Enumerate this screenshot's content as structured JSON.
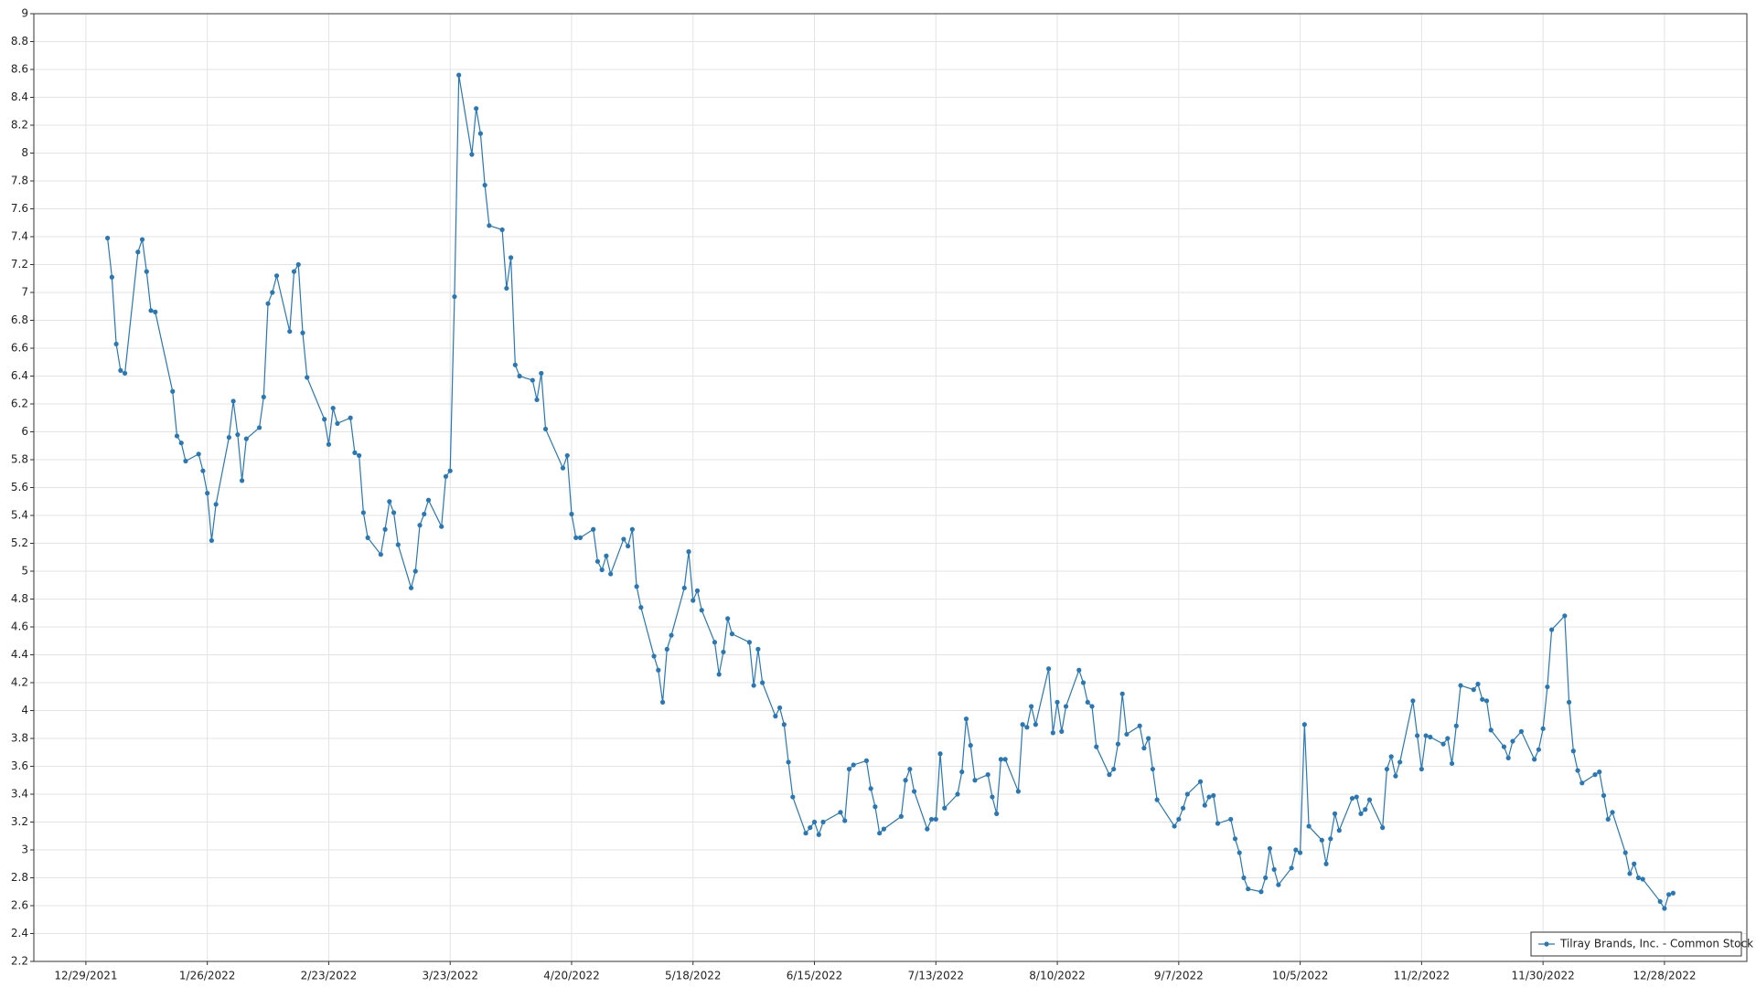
{
  "chart_data": {
    "type": "line",
    "x": [
      "1/3/2022",
      "1/4/2022",
      "1/5/2022",
      "1/6/2022",
      "1/7/2022",
      "1/10/2022",
      "1/11/2022",
      "1/12/2022",
      "1/13/2022",
      "1/14/2022",
      "1/18/2022",
      "1/19/2022",
      "1/20/2022",
      "1/21/2022",
      "1/24/2022",
      "1/25/2022",
      "1/26/2022",
      "1/27/2022",
      "1/28/2022",
      "1/31/2022",
      "2/1/2022",
      "2/2/2022",
      "2/3/2022",
      "2/4/2022",
      "2/7/2022",
      "2/8/2022",
      "2/9/2022",
      "2/10/2022",
      "2/11/2022",
      "2/14/2022",
      "2/15/2022",
      "2/16/2022",
      "2/17/2022",
      "2/18/2022",
      "2/22/2022",
      "2/23/2022",
      "2/24/2022",
      "2/25/2022",
      "2/28/2022",
      "3/1/2022",
      "3/2/2022",
      "3/3/2022",
      "3/4/2022",
      "3/7/2022",
      "3/8/2022",
      "3/9/2022",
      "3/10/2022",
      "3/11/2022",
      "3/14/2022",
      "3/15/2022",
      "3/16/2022",
      "3/17/2022",
      "3/18/2022",
      "3/21/2022",
      "3/22/2022",
      "3/23/2022",
      "3/24/2022",
      "3/25/2022",
      "3/28/2022",
      "3/29/2022",
      "3/30/2022",
      "3/31/2022",
      "4/1/2022",
      "4/4/2022",
      "4/5/2022",
      "4/6/2022",
      "4/7/2022",
      "4/8/2022",
      "4/11/2022",
      "4/12/2022",
      "4/13/2022",
      "4/14/2022",
      "4/18/2022",
      "4/19/2022",
      "4/20/2022",
      "4/21/2022",
      "4/22/2022",
      "4/25/2022",
      "4/26/2022",
      "4/27/2022",
      "4/28/2022",
      "4/29/2022",
      "5/2/2022",
      "5/3/2022",
      "5/4/2022",
      "5/5/2022",
      "5/6/2022",
      "5/9/2022",
      "5/10/2022",
      "5/11/2022",
      "5/12/2022",
      "5/13/2022",
      "5/16/2022",
      "5/17/2022",
      "5/18/2022",
      "5/19/2022",
      "5/20/2022",
      "5/23/2022",
      "5/24/2022",
      "5/25/2022",
      "5/26/2022",
      "5/27/2022",
      "5/31/2022",
      "6/1/2022",
      "6/2/2022",
      "6/3/2022",
      "6/6/2022",
      "6/7/2022",
      "6/8/2022",
      "6/9/2022",
      "6/10/2022",
      "6/13/2022",
      "6/14/2022",
      "6/15/2022",
      "6/16/2022",
      "6/17/2022",
      "6/21/2022",
      "6/22/2022",
      "6/23/2022",
      "6/24/2022",
      "6/27/2022",
      "6/28/2022",
      "6/29/2022",
      "6/30/2022",
      "7/1/2022",
      "7/5/2022",
      "7/6/2022",
      "7/7/2022",
      "7/8/2022",
      "7/11/2022",
      "7/12/2022",
      "7/13/2022",
      "7/14/2022",
      "7/15/2022",
      "7/18/2022",
      "7/19/2022",
      "7/20/2022",
      "7/21/2022",
      "7/22/2022",
      "7/25/2022",
      "7/26/2022",
      "7/27/2022",
      "7/28/2022",
      "7/29/2022",
      "8/1/2022",
      "8/2/2022",
      "8/3/2022",
      "8/4/2022",
      "8/5/2022",
      "8/8/2022",
      "8/9/2022",
      "8/10/2022",
      "8/11/2022",
      "8/12/2022",
      "8/15/2022",
      "8/16/2022",
      "8/17/2022",
      "8/18/2022",
      "8/19/2022",
      "8/22/2022",
      "8/23/2022",
      "8/24/2022",
      "8/25/2022",
      "8/26/2022",
      "8/29/2022",
      "8/30/2022",
      "8/31/2022",
      "9/1/2022",
      "9/2/2022",
      "9/6/2022",
      "9/7/2022",
      "9/8/2022",
      "9/9/2022",
      "9/12/2022",
      "9/13/2022",
      "9/14/2022",
      "9/15/2022",
      "9/16/2022",
      "9/19/2022",
      "9/20/2022",
      "9/21/2022",
      "9/22/2022",
      "9/23/2022",
      "9/26/2022",
      "9/27/2022",
      "9/28/2022",
      "9/29/2022",
      "9/30/2022",
      "10/3/2022",
      "10/4/2022",
      "10/5/2022",
      "10/6/2022",
      "10/7/2022",
      "10/10/2022",
      "10/11/2022",
      "10/12/2022",
      "10/13/2022",
      "10/14/2022",
      "10/17/2022",
      "10/18/2022",
      "10/19/2022",
      "10/20/2022",
      "10/21/2022",
      "10/24/2022",
      "10/25/2022",
      "10/26/2022",
      "10/27/2022",
      "10/28/2022",
      "10/31/2022",
      "11/1/2022",
      "11/2/2022",
      "11/3/2022",
      "11/4/2022",
      "11/7/2022",
      "11/8/2022",
      "11/9/2022",
      "11/10/2022",
      "11/11/2022",
      "11/14/2022",
      "11/15/2022",
      "11/16/2022",
      "11/17/2022",
      "11/18/2022",
      "11/21/2022",
      "11/22/2022",
      "11/23/2022",
      "11/25/2022",
      "11/28/2022",
      "11/29/2022",
      "11/30/2022",
      "12/1/2022",
      "12/2/2022",
      "12/5/2022",
      "12/6/2022",
      "12/7/2022",
      "12/8/2022",
      "12/9/2022",
      "12/12/2022",
      "12/13/2022",
      "12/14/2022",
      "12/15/2022",
      "12/16/2022",
      "12/19/2022",
      "12/20/2022",
      "12/21/2022",
      "12/22/2022",
      "12/23/2022",
      "12/27/2022",
      "12/28/2022",
      "12/29/2022",
      "12/30/2022"
    ],
    "series": [
      {
        "name": "Tilray Brands, Inc. - Common Stock",
        "color": "#2878b5",
        "values": [
          7.39,
          7.11,
          6.63,
          6.44,
          6.42,
          7.29,
          7.38,
          7.15,
          6.87,
          6.86,
          6.29,
          5.97,
          5.92,
          5.79,
          5.84,
          5.72,
          5.56,
          5.22,
          5.48,
          5.96,
          6.22,
          5.98,
          5.65,
          5.95,
          6.03,
          6.25,
          6.92,
          7.0,
          7.12,
          6.72,
          7.15,
          7.2,
          6.71,
          6.39,
          6.09,
          5.91,
          6.17,
          6.06,
          6.1,
          5.85,
          5.83,
          5.42,
          5.24,
          5.12,
          5.3,
          5.5,
          5.42,
          5.19,
          4.88,
          5.0,
          5.33,
          5.41,
          5.51,
          5.32,
          5.68,
          5.72,
          6.97,
          8.56,
          7.99,
          8.32,
          8.14,
          7.77,
          7.48,
          7.45,
          7.03,
          7.25,
          6.48,
          6.4,
          6.37,
          6.23,
          6.42,
          6.02,
          5.74,
          5.83,
          5.41,
          5.24,
          5.24,
          5.3,
          5.07,
          5.01,
          5.11,
          4.98,
          5.23,
          5.18,
          5.3,
          4.89,
          4.74,
          4.39,
          4.29,
          4.06,
          4.44,
          4.54,
          4.88,
          5.14,
          4.79,
          4.86,
          4.72,
          4.49,
          4.26,
          4.42,
          4.66,
          4.55,
          4.49,
          4.18,
          4.44,
          4.2,
          3.96,
          4.02,
          3.9,
          3.63,
          3.38,
          3.12,
          3.16,
          3.2,
          3.11,
          3.2,
          3.27,
          3.21,
          3.58,
          3.61,
          3.64,
          3.44,
          3.31,
          3.12,
          3.15,
          3.24,
          3.5,
          3.58,
          3.42,
          3.15,
          3.22,
          3.22,
          3.69,
          3.3,
          3.4,
          3.56,
          3.94,
          3.75,
          3.5,
          3.54,
          3.38,
          3.26,
          3.65,
          3.65,
          3.42,
          3.9,
          3.88,
          4.03,
          3.9,
          4.3,
          3.84,
          4.06,
          3.85,
          4.03,
          4.29,
          4.2,
          4.06,
          4.03,
          3.74,
          3.54,
          3.58,
          3.76,
          4.12,
          3.83,
          3.89,
          3.73,
          3.8,
          3.58,
          3.36,
          3.17,
          3.22,
          3.3,
          3.4,
          3.49,
          3.32,
          3.38,
          3.39,
          3.19,
          3.22,
          3.08,
          2.98,
          2.8,
          2.72,
          2.7,
          2.8,
          3.01,
          2.86,
          2.75,
          2.87,
          3.0,
          2.98,
          3.9,
          3.17,
          3.07,
          2.9,
          3.08,
          3.26,
          3.14,
          3.37,
          3.38,
          3.26,
          3.29,
          3.36,
          3.16,
          3.58,
          3.67,
          3.53,
          3.63,
          4.07,
          3.82,
          3.58,
          3.82,
          3.81,
          3.76,
          3.8,
          3.62,
          3.89,
          4.18,
          4.15,
          4.19,
          4.08,
          4.07,
          3.86,
          3.74,
          3.66,
          3.78,
          3.85,
          3.65,
          3.72,
          3.87,
          4.17,
          4.58,
          4.68,
          4.06,
          3.71,
          3.57,
          3.48,
          3.54,
          3.56,
          3.39,
          3.22,
          3.27,
          2.98,
          2.83,
          2.9,
          2.8,
          2.79,
          2.63,
          2.58,
          2.68,
          2.69
        ]
      }
    ],
    "xlim": [
      "12/17/2021",
      "1/16/2023"
    ],
    "xticks": [
      "12/29/2021",
      "1/26/2022",
      "2/23/2022",
      "3/23/2022",
      "4/20/2022",
      "5/18/2022",
      "6/15/2022",
      "7/13/2022",
      "8/10/2022",
      "9/7/2022",
      "10/5/2022",
      "11/2/2022",
      "11/30/2022",
      "12/28/2022"
    ],
    "ylim": [
      2.2,
      9
    ],
    "yticks": [
      2.2,
      2.4,
      2.6,
      2.8,
      3,
      3.2,
      3.4,
      3.6,
      3.8,
      4,
      4.2,
      4.4,
      4.6,
      4.8,
      5,
      5.2,
      5.4,
      5.6,
      5.8,
      6,
      6.2,
      6.4,
      6.6,
      6.8,
      7,
      7.2,
      7.4,
      7.6,
      7.8,
      8,
      8.2,
      8.4,
      8.6,
      8.8,
      9
    ],
    "grid": true,
    "legend": "lower right"
  }
}
